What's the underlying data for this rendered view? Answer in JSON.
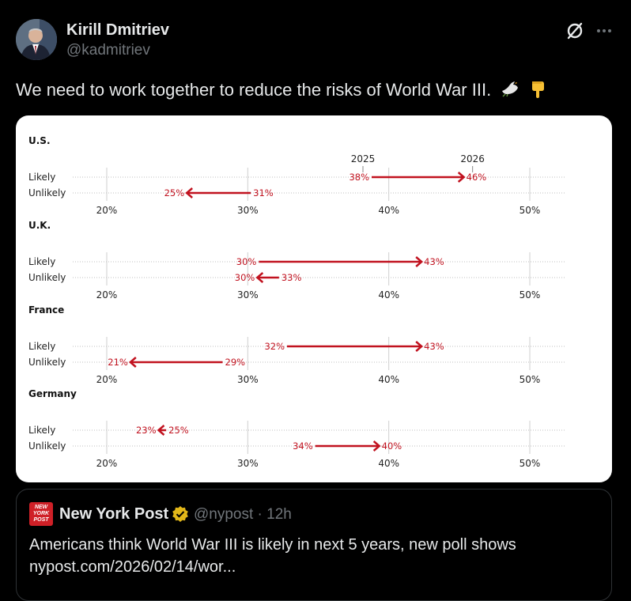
{
  "tweet": {
    "author_name": "Kirill Dmitriev",
    "author_handle": "@kadmitriev",
    "text": "We need to work together to reduce the risks of World War III.",
    "emoji": [
      "dove-icon",
      "point-down-icon"
    ]
  },
  "icons": {
    "grok": "grok-icon",
    "more": "more-icon"
  },
  "chart_data": {
    "type": "dumbbell-arrow",
    "xlim": [
      20,
      50
    ],
    "xticks": [
      "20%",
      "30%",
      "40%",
      "50%"
    ],
    "xtick_values": [
      20,
      30,
      40,
      50
    ],
    "year_labels": {
      "from": "2025",
      "to": "2026"
    },
    "series_rows": [
      "Likely",
      "Unlikely"
    ],
    "arrow_color": "#c1121f",
    "panels": [
      {
        "country": "U.S.",
        "rows": [
          {
            "label": "Likely",
            "from": 38,
            "to": 46,
            "from_label": "38%",
            "to_label": "46%"
          },
          {
            "label": "Unlikely",
            "from": 31,
            "to": 25,
            "from_label": "31%",
            "to_label": "25%"
          }
        ]
      },
      {
        "country": "U.K.",
        "rows": [
          {
            "label": "Likely",
            "from": 30,
            "to": 43,
            "from_label": "30%",
            "to_label": "43%"
          },
          {
            "label": "Unlikely",
            "from": 33,
            "to": 30,
            "from_label": "33%",
            "to_label": "30%"
          }
        ]
      },
      {
        "country": "France",
        "rows": [
          {
            "label": "Likely",
            "from": 32,
            "to": 43,
            "from_label": "32%",
            "to_label": "43%"
          },
          {
            "label": "Unlikely",
            "from": 29,
            "to": 21,
            "from_label": "29%",
            "to_label": "21%"
          }
        ]
      },
      {
        "country": "Germany",
        "rows": [
          {
            "label": "Likely",
            "from": 25,
            "to": 23,
            "from_label": "25%",
            "to_label": "23%"
          },
          {
            "label": "Unlikely",
            "from": 34,
            "to": 40,
            "from_label": "34%",
            "to_label": "40%"
          }
        ]
      }
    ]
  },
  "quote": {
    "name": "New York Post",
    "handle_time": "@nypost · 12h",
    "logo_text": "NEW YORK POST",
    "text_line1": "Americans think World War III is likely in next 5 years, new poll shows",
    "text_line2": "nypost.com/2026/02/14/wor..."
  }
}
